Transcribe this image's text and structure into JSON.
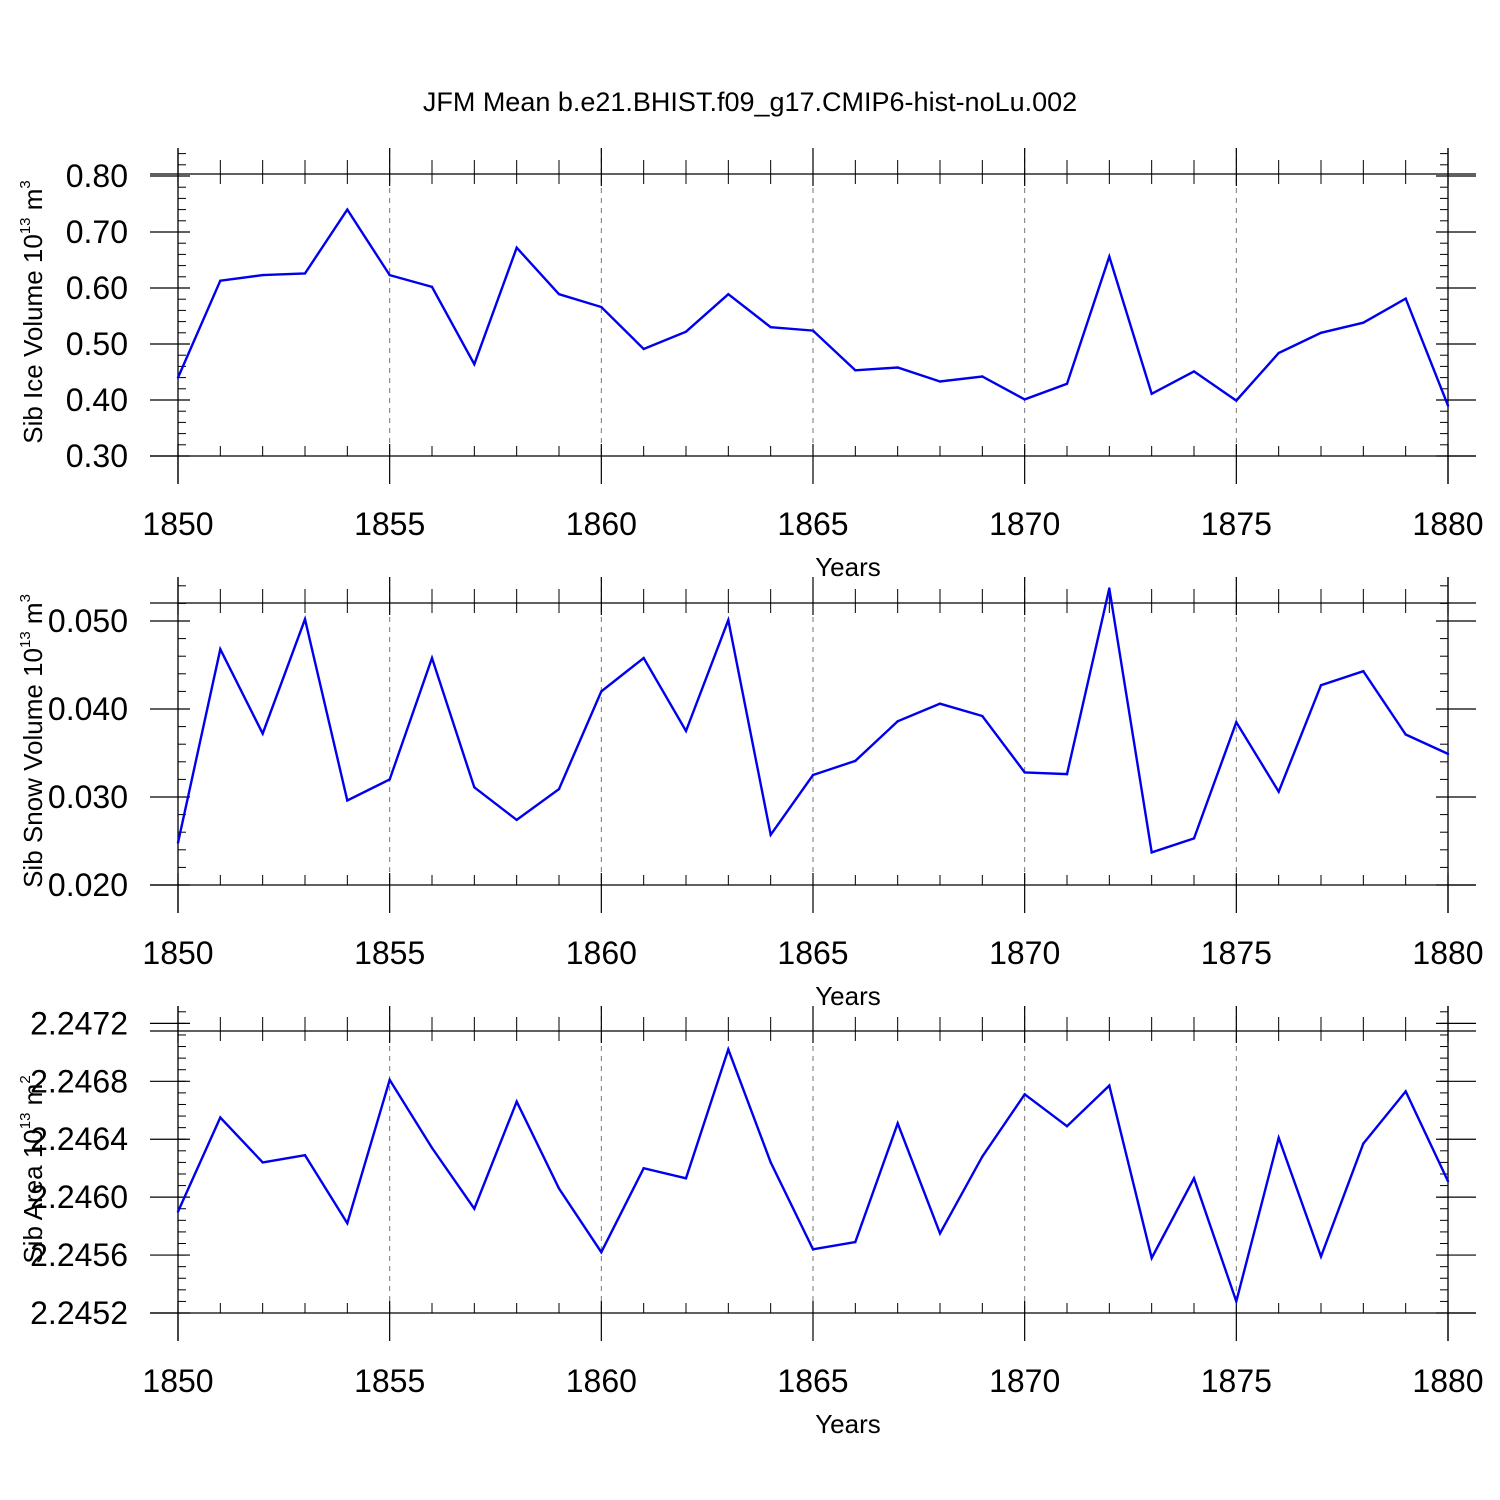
{
  "title": "JFM Mean b.e21.BHIST.f09_g17.CMIP6-hist-noLu.002",
  "series_color": "#0000ee",
  "chart_data": [
    {
      "type": "line",
      "name": "ice-volume",
      "xlabel": "Years",
      "ylabel_main": "Sib Ice Volume 10",
      "ylabel_exp": "13",
      "ylabel_unit": " m",
      "ylabel_unit_exp": "3",
      "xlim": [
        1850,
        1880
      ],
      "ylim": [
        0.3,
        0.85
      ],
      "xticks": [
        1850,
        1855,
        1860,
        1865,
        1870,
        1875,
        1880
      ],
      "xtick_labels": [
        "1850",
        "1855",
        "1860",
        "1865",
        "1870",
        "1875",
        "1880"
      ],
      "yticks": [
        0.3,
        0.4,
        0.5,
        0.6,
        0.7,
        0.8
      ],
      "ytick_labels": [
        "0.30",
        "0.40",
        "0.50",
        "0.60",
        "0.70",
        "0.80"
      ],
      "x": [
        1850,
        1851,
        1852,
        1853,
        1854,
        1855,
        1856,
        1857,
        1858,
        1859,
        1860,
        1861,
        1862,
        1863,
        1864,
        1865,
        1866,
        1867,
        1868,
        1869,
        1870,
        1871,
        1872,
        1873,
        1874,
        1875,
        1876,
        1877,
        1878,
        1879,
        1880
      ],
      "values": [
        0.44,
        0.613,
        0.623,
        0.626,
        0.74,
        0.623,
        0.602,
        0.464,
        0.672,
        0.589,
        0.566,
        0.491,
        0.522,
        0.589,
        0.53,
        0.524,
        0.453,
        0.458,
        0.433,
        0.442,
        0.401,
        0.429,
        0.656,
        0.411,
        0.451,
        0.399,
        0.484,
        0.52,
        0.538,
        0.581,
        0.39
      ]
    },
    {
      "type": "line",
      "name": "snow-volume",
      "xlabel": "Years",
      "ylabel_main": "Sib Snow Volume 10",
      "ylabel_exp": "13",
      "ylabel_unit": " m",
      "ylabel_unit_exp": "3",
      "xlim": [
        1850,
        1880
      ],
      "ylim": [
        0.02,
        0.055
      ],
      "xticks": [
        1850,
        1855,
        1860,
        1865,
        1870,
        1875,
        1880
      ],
      "xtick_labels": [
        "1850",
        "1855",
        "1860",
        "1865",
        "1870",
        "1875",
        "1880"
      ],
      "yticks": [
        0.02,
        0.03,
        0.04,
        0.05
      ],
      "ytick_labels": [
        "0.020",
        "0.030",
        "0.040",
        "0.050"
      ],
      "x": [
        1850,
        1851,
        1852,
        1853,
        1854,
        1855,
        1856,
        1857,
        1858,
        1859,
        1860,
        1861,
        1862,
        1863,
        1864,
        1865,
        1866,
        1867,
        1868,
        1869,
        1870,
        1871,
        1872,
        1873,
        1874,
        1875,
        1876,
        1877,
        1878,
        1879,
        1880
      ],
      "values": [
        0.0248,
        0.0468,
        0.0372,
        0.0502,
        0.0296,
        0.032,
        0.0458,
        0.0311,
        0.0274,
        0.0309,
        0.042,
        0.0458,
        0.0375,
        0.0501,
        0.0257,
        0.0325,
        0.0341,
        0.0386,
        0.0406,
        0.0392,
        0.0328,
        0.0326,
        0.0537,
        0.0237,
        0.0253,
        0.0385,
        0.0306,
        0.0427,
        0.0443,
        0.0371,
        0.0349
      ]
    },
    {
      "type": "line",
      "name": "sib-area",
      "xlabel": "Years",
      "ylabel_main": "Sib Area 10",
      "ylabel_exp": "13",
      "ylabel_unit": " m",
      "ylabel_unit_exp": "2",
      "xlim": [
        1850,
        1880
      ],
      "ylim": [
        2.2452,
        2.24732
      ],
      "xticks": [
        1850,
        1855,
        1860,
        1865,
        1870,
        1875,
        1880
      ],
      "xtick_labels": [
        "1850",
        "1855",
        "1860",
        "1865",
        "1870",
        "1875",
        "1880"
      ],
      "yticks": [
        2.2452,
        2.2456,
        2.246,
        2.2464,
        2.2468,
        2.2472
      ],
      "ytick_labels": [
        "2.2452",
        "2.2456",
        "2.2460",
        "2.2464",
        "2.2468",
        "2.2472"
      ],
      "x": [
        1850,
        1851,
        1852,
        1853,
        1854,
        1855,
        1856,
        1857,
        1858,
        1859,
        1860,
        1861,
        1862,
        1863,
        1864,
        1865,
        1866,
        1867,
        1868,
        1869,
        1870,
        1871,
        1872,
        1873,
        1874,
        1875,
        1876,
        1877,
        1878,
        1879,
        1880
      ],
      "values": [
        2.2459,
        2.24655,
        2.24624,
        2.24629,
        2.24582,
        2.24681,
        2.24634,
        2.24592,
        2.24666,
        2.24606,
        2.24562,
        2.2462,
        2.24613,
        2.24702,
        2.24624,
        2.24564,
        2.24569,
        2.24651,
        2.24575,
        2.24628,
        2.24671,
        2.24649,
        2.24677,
        2.24558,
        2.24613,
        2.24528,
        2.24641,
        2.24559,
        2.24637,
        2.24673,
        2.24611
      ]
    }
  ]
}
